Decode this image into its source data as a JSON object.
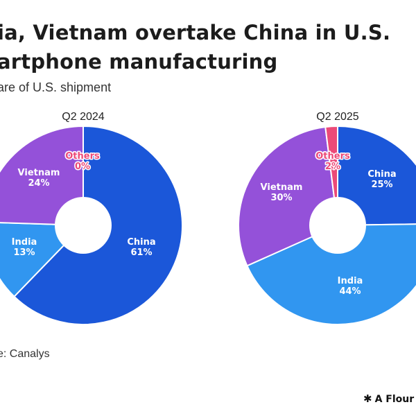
{
  "header": {
    "title_line1": "ia, Vietnam overtake China in U.S.",
    "title_line2": "artphone manufacturing",
    "subtitle": "are of U.S. shipment"
  },
  "footer": {
    "source": "e: Canalys",
    "brand_icon": "asterisk-icon",
    "brand_text": "A Flour"
  },
  "colors": {
    "China": "#1b57d9",
    "India": "#3196f0",
    "Vietnam": "#9451d9",
    "Others": "#ec4a78"
  },
  "chart_data": [
    {
      "type": "pie",
      "title": "Q2 2024",
      "slices": [
        {
          "name": "China",
          "value": 61,
          "label": "61%"
        },
        {
          "name": "India",
          "value": 13,
          "label": "13%"
        },
        {
          "name": "Vietnam",
          "value": 24,
          "label": "24%"
        },
        {
          "name": "Others",
          "value": 0,
          "label": "0%"
        }
      ]
    },
    {
      "type": "pie",
      "title": "Q2 2025",
      "slices": [
        {
          "name": "China",
          "value": 25,
          "label": "25%"
        },
        {
          "name": "India",
          "value": 44,
          "label": "44%"
        },
        {
          "name": "Vietnam",
          "value": 30,
          "label": "30%"
        },
        {
          "name": "Others",
          "value": 2,
          "label": "2%"
        }
      ]
    }
  ]
}
